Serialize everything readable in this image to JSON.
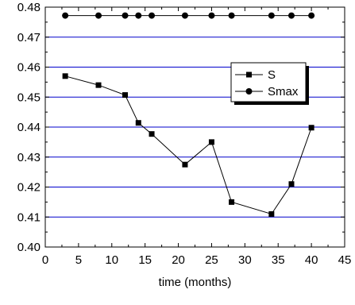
{
  "chart_data": {
    "type": "line",
    "title": "",
    "xlabel": "time (months)",
    "ylabel": "",
    "xlim": [
      0,
      45
    ],
    "ylim": [
      0.4,
      0.48
    ],
    "xticks": [
      0,
      5,
      10,
      15,
      20,
      25,
      30,
      35,
      40,
      45
    ],
    "xtick_labels": [
      "0",
      "5",
      "10",
      "15",
      "20",
      "25",
      "30",
      "35",
      "40",
      "45"
    ],
    "yticks": [
      0.4,
      0.41,
      0.42,
      0.43,
      0.44,
      0.45,
      0.46,
      0.47,
      0.48
    ],
    "ytick_labels": [
      "0.40",
      "0.41",
      "0.42",
      "0.43",
      "0.44",
      "0.45",
      "0.46",
      "0.47",
      "0.48"
    ],
    "grid": "horizontal",
    "grid_color": "#0000cc",
    "legend_position": "top-right",
    "series": [
      {
        "name": "S",
        "marker": "square",
        "color": "#000000",
        "x": [
          3,
          8,
          12,
          14,
          16,
          21,
          25,
          28,
          34,
          37,
          40
        ],
        "y": [
          0.457,
          0.454,
          0.4507,
          0.4414,
          0.4377,
          0.4275,
          0.435,
          0.415,
          0.411,
          0.421,
          0.4398
        ]
      },
      {
        "name": "Smax",
        "marker": "circle",
        "color": "#000000",
        "x": [
          3,
          8,
          12,
          14,
          16,
          21,
          25,
          28,
          34,
          37,
          40
        ],
        "y": [
          0.4772,
          0.4772,
          0.4772,
          0.4772,
          0.4772,
          0.4772,
          0.4772,
          0.4772,
          0.4772,
          0.4772,
          0.4772
        ]
      }
    ]
  }
}
